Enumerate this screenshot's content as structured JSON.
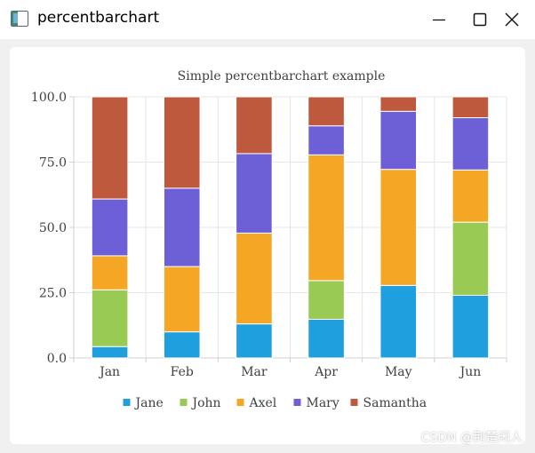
{
  "window": {
    "title": "percentbarchart",
    "minimize_icon": "minimize-icon",
    "maximize_icon": "maximize-icon",
    "close_icon": "close-icon"
  },
  "watermark": "CSDN @荆楚闲人",
  "chart_data": {
    "type": "bar",
    "stacked": "percent",
    "title": "Simple percentbarchart example",
    "xlabel": "",
    "ylabel": "",
    "categories": [
      "Jan",
      "Feb",
      "Mar",
      "Apr",
      "May",
      "Jun"
    ],
    "ylim": [
      0,
      100
    ],
    "yticks": [
      "0.0",
      "25.0",
      "50.0",
      "75.0",
      "100.0"
    ],
    "grid": true,
    "legend_position": "bottom",
    "series": [
      {
        "name": "Jane",
        "color": "#209fdf",
        "values": [
          1,
          2,
          3,
          4,
          5,
          6
        ]
      },
      {
        "name": "John",
        "color": "#99ca53",
        "values": [
          5,
          0,
          0,
          4,
          0,
          7
        ]
      },
      {
        "name": "Axel",
        "color": "#f6a625",
        "values": [
          3,
          5,
          8,
          13,
          8,
          5
        ]
      },
      {
        "name": "Mary",
        "color": "#6d5fd5",
        "values": [
          5,
          6,
          7,
          3,
          4,
          5
        ]
      },
      {
        "name": "Samantha",
        "color": "#bf593e",
        "values": [
          9,
          7,
          5,
          3,
          1,
          2
        ]
      }
    ]
  }
}
